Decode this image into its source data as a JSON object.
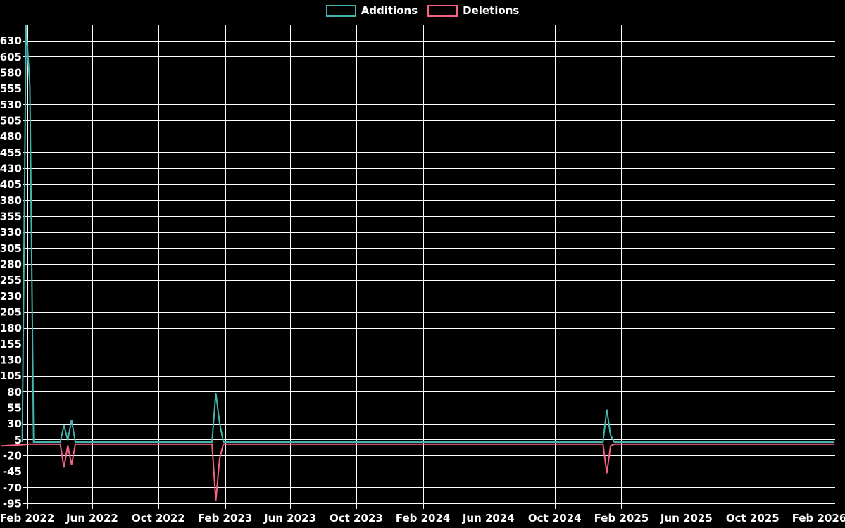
{
  "page": {
    "background": "#000000"
  },
  "legend": {
    "items": [
      {
        "label": "Additions",
        "color": "#44b5ae"
      },
      {
        "label": "Deletions",
        "color": "#f76183"
      }
    ]
  },
  "chart_data": {
    "type": "line",
    "title": "",
    "background": "#000000",
    "grid_color": "#ffffff",
    "text_color": "#ffffff",
    "legend_position": "top-center",
    "grid": true,
    "x_axis": {
      "start_date": "2022-02-01",
      "end_date": "2026-02-01",
      "ticks": [
        {
          "date": "2022-02-01",
          "label": "Feb 2022"
        },
        {
          "date": "2022-06-01",
          "label": "Jun 2022"
        },
        {
          "date": "2022-10-01",
          "label": "Oct 2022"
        },
        {
          "date": "2023-02-01",
          "label": "Feb 2023"
        },
        {
          "date": "2023-06-01",
          "label": "Jun 2023"
        },
        {
          "date": "2023-10-01",
          "label": "Oct 2023"
        },
        {
          "date": "2024-02-01",
          "label": "Feb 2024"
        },
        {
          "date": "2024-06-01",
          "label": "Jun 2024"
        },
        {
          "date": "2024-10-01",
          "label": "Oct 2024"
        },
        {
          "date": "2025-02-01",
          "label": "Feb 2025"
        },
        {
          "date": "2025-06-01",
          "label": "Jun 2025"
        },
        {
          "date": "2025-10-01",
          "label": "Oct 2025"
        },
        {
          "date": "2026-02-01",
          "label": "Feb 2026"
        }
      ]
    },
    "y_axis": {
      "min": -95,
      "max": 655,
      "tick_step": 25,
      "ticks": [
        630,
        605,
        580,
        555,
        530,
        505,
        480,
        455,
        430,
        405,
        380,
        355,
        330,
        305,
        280,
        255,
        230,
        205,
        180,
        155,
        130,
        105,
        80,
        55,
        30,
        5,
        -20,
        -45,
        -70,
        -95
      ]
    },
    "series": [
      {
        "name": "Additions",
        "color": "#44b5ae",
        "points": [
          [
            "2022-01-23",
            1
          ],
          [
            "2022-01-30",
            655
          ],
          [
            "2022-02-06",
            560
          ],
          [
            "2022-02-13",
            1
          ],
          [
            "2022-04-03",
            1
          ],
          [
            "2022-04-10",
            27
          ],
          [
            "2022-04-17",
            4
          ],
          [
            "2022-04-24",
            36
          ],
          [
            "2022-05-01",
            1
          ],
          [
            "2023-01-08",
            1
          ],
          [
            "2023-01-15",
            78
          ],
          [
            "2023-01-22",
            31
          ],
          [
            "2023-01-29",
            1
          ],
          [
            "2024-12-29",
            1
          ],
          [
            "2025-01-05",
            52
          ],
          [
            "2025-01-12",
            12
          ],
          [
            "2025-01-19",
            1
          ],
          [
            "2026-03-01",
            1
          ]
        ]
      },
      {
        "name": "Deletions",
        "color": "#f76183",
        "points": [
          [
            "2021-12-15",
            -5
          ],
          [
            "2022-01-02",
            -4
          ],
          [
            "2022-01-23",
            -3
          ],
          [
            "2022-02-06",
            -2
          ],
          [
            "2022-04-03",
            -2
          ],
          [
            "2022-04-10",
            -39
          ],
          [
            "2022-04-17",
            -4
          ],
          [
            "2022-04-24",
            -35
          ],
          [
            "2022-05-01",
            -2
          ],
          [
            "2023-01-08",
            -2
          ],
          [
            "2023-01-15",
            -91
          ],
          [
            "2023-01-22",
            -25
          ],
          [
            "2023-01-29",
            -2
          ],
          [
            "2024-12-29",
            -2
          ],
          [
            "2025-01-05",
            -48
          ],
          [
            "2025-01-12",
            -5
          ],
          [
            "2025-01-19",
            -2
          ],
          [
            "2026-03-01",
            -2
          ]
        ]
      }
    ]
  }
}
